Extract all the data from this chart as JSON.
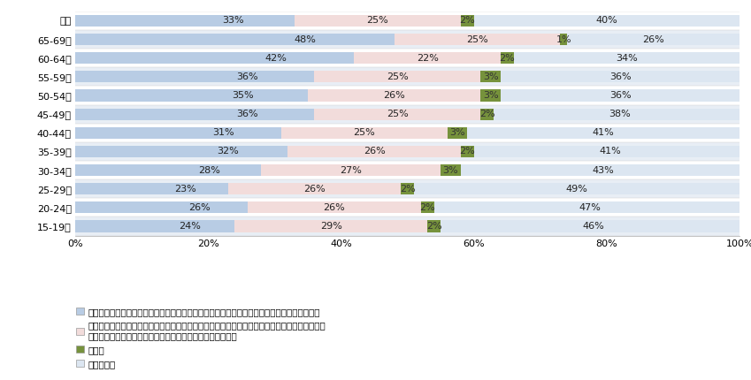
{
  "categories": [
    "総計",
    "65-69歳",
    "60-64歳",
    "55-59歳",
    "50-54歳",
    "45-49歳",
    "40-44歳",
    "35-39歳",
    "30-34歳",
    "25-29歳",
    "20-24歳",
    "15-19歳"
  ],
  "series": {
    "blue": [
      33,
      48,
      42,
      36,
      35,
      36,
      31,
      32,
      28,
      23,
      26,
      24
    ],
    "pink": [
      25,
      25,
      22,
      25,
      26,
      25,
      25,
      26,
      27,
      26,
      26,
      29
    ],
    "green": [
      2,
      1,
      2,
      3,
      3,
      2,
      3,
      2,
      3,
      2,
      2,
      2
    ],
    "lavender": [
      40,
      26,
      34,
      36,
      36,
      38,
      41,
      41,
      43,
      49,
      47,
      46
    ]
  },
  "colors": {
    "blue": "#b8cce4",
    "pink": "#f2dcdb",
    "green": "#76923c",
    "lavender": "#dce6f1"
  },
  "stripe_colors": [
    "#e8eef5",
    "#ffffff"
  ],
  "legend_labels": [
    "日本の技術が海外で軍事技術に活用される懸念がある以上、経済安全保障の考えは理解できる",
    "科学技術交流は研究者同士が自由に実施すべきものであり、経済安全保障の考えにより特定の国\nとの科学技術交流に制約がかかることについては懸念がある",
    "その他",
    "わからない"
  ],
  "legend_colors": [
    "#b8cce4",
    "#f2dcdb",
    "#76923c",
    "#dce6f1"
  ],
  "background_color": "#ffffff",
  "label_fontsize": 8,
  "ytick_fontsize": 8,
  "xtick_fontsize": 8,
  "legend_fontsize": 7.5
}
